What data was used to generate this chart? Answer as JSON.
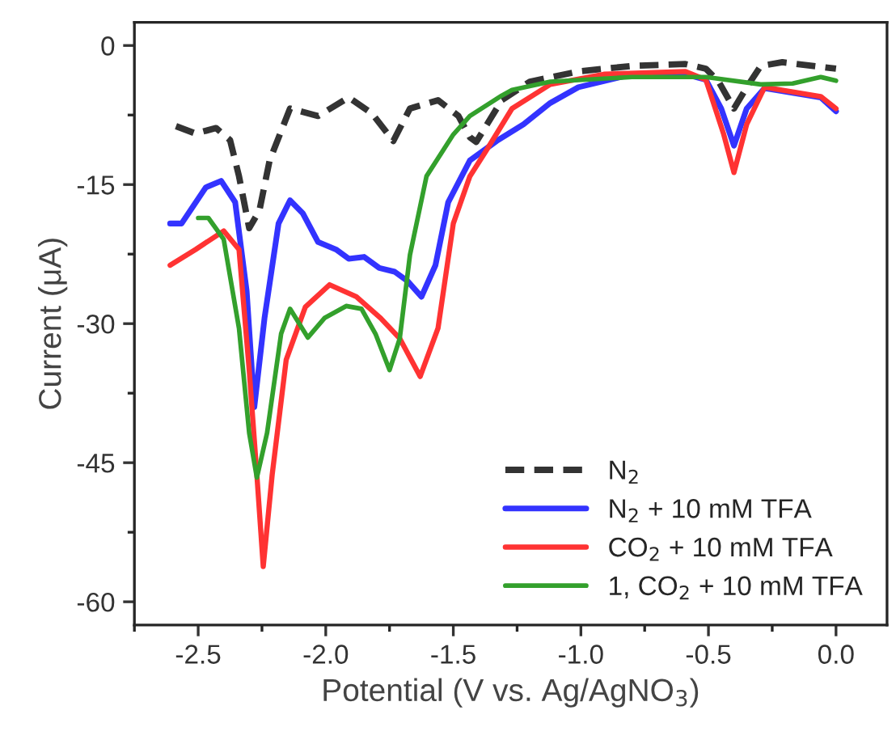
{
  "chart_data": {
    "type": "line",
    "xlabel": "Potential (V vs. Ag/AgNO$_{3}$)",
    "ylabel": "Current (μA)",
    "xlim": [
      -2.75,
      0.2
    ],
    "ylim": [
      -62.5,
      2.5
    ],
    "xticks": [
      {
        "value": -2.75,
        "label": null
      },
      {
        "value": -2.5,
        "label": "-2.5"
      },
      {
        "value": -2.25,
        "label": null
      },
      {
        "value": -2.0,
        "label": "-2.0"
      },
      {
        "value": -1.75,
        "label": null
      },
      {
        "value": -1.5,
        "label": "-1.5"
      },
      {
        "value": -1.25,
        "label": null
      },
      {
        "value": -1.0,
        "label": "-1.0"
      },
      {
        "value": -0.75,
        "label": null
      },
      {
        "value": -0.5,
        "label": "-0.5"
      },
      {
        "value": -0.25,
        "label": null
      },
      {
        "value": 0.0,
        "label": "0.0"
      }
    ],
    "yticks": [
      {
        "value": -60,
        "label": "-60"
      },
      {
        "value": -52.5,
        "label": null
      },
      {
        "value": -45,
        "label": "-45"
      },
      {
        "value": -37.5,
        "label": null
      },
      {
        "value": -30,
        "label": "-30"
      },
      {
        "value": -22.5,
        "label": null
      },
      {
        "value": -15,
        "label": "-15"
      },
      {
        "value": -7.5,
        "label": null
      },
      {
        "value": 0,
        "label": "0"
      }
    ],
    "grid": false,
    "legend": "bottom right",
    "series": [
      {
        "name": "N$_{2}$",
        "color": "#333333",
        "line_style": "dashed",
        "x": [
          -2.587,
          -2.51,
          -2.43,
          -2.375,
          -2.34,
          -2.3,
          -2.26,
          -2.22,
          -2.14,
          -2.03,
          -1.91,
          -1.82,
          -1.735,
          -1.67,
          -1.56,
          -1.48,
          -1.435,
          -1.41,
          -1.31,
          -1.2,
          -1.01,
          -0.8,
          -0.59,
          -0.51,
          -0.46,
          -0.4,
          -0.35,
          -0.295,
          -0.21,
          0.0
        ],
        "values": [
          -8.7,
          -9.5,
          -8.9,
          -10.2,
          -14.1,
          -19.7,
          -17.8,
          -12.4,
          -6.8,
          -7.6,
          -5.6,
          -7.3,
          -10.3,
          -6.8,
          -5.9,
          -7.6,
          -9.9,
          -10.4,
          -5.9,
          -3.9,
          -2.8,
          -2.2,
          -2.0,
          -2.5,
          -3.9,
          -6.8,
          -4.5,
          -2.2,
          -1.8,
          -2.5
        ]
      },
      {
        "name": "N$_{2}$ + 10 mM TFA",
        "color": "#3333ff",
        "line_style": "solid",
        "x": [
          -2.61,
          -2.565,
          -2.47,
          -2.41,
          -2.355,
          -2.31,
          -2.28,
          -2.24,
          -2.185,
          -2.14,
          -2.09,
          -2.03,
          -1.96,
          -1.91,
          -1.85,
          -1.79,
          -1.73,
          -1.68,
          -1.625,
          -1.57,
          -1.52,
          -1.435,
          -1.33,
          -1.225,
          -1.12,
          -1.01,
          -0.8,
          -0.59,
          -0.51,
          -0.45,
          -0.4,
          -0.35,
          -0.28,
          -0.17,
          -0.06,
          0.0
        ],
        "values": [
          -19.2,
          -19.2,
          -15.3,
          -14.6,
          -16.9,
          -26.5,
          -39.0,
          -29.4,
          -19.2,
          -16.7,
          -18.1,
          -21.2,
          -22.0,
          -23.0,
          -22.8,
          -24.0,
          -24.4,
          -25.4,
          -27.1,
          -23.7,
          -16.9,
          -12.4,
          -10.3,
          -8.5,
          -6.2,
          -4.5,
          -3.1,
          -3.1,
          -3.7,
          -6.8,
          -10.8,
          -6.8,
          -4.6,
          -5.1,
          -5.6,
          -7.1
        ]
      },
      {
        "name": "CO$_{2}$ + 10 mM TFA",
        "color": "#ff3333",
        "line_style": "solid",
        "x": [
          -2.61,
          -2.51,
          -2.4,
          -2.34,
          -2.3,
          -2.27,
          -2.245,
          -2.21,
          -2.155,
          -2.08,
          -1.985,
          -1.88,
          -1.785,
          -1.71,
          -1.63,
          -1.56,
          -1.5,
          -1.435,
          -1.37,
          -1.27,
          -1.12,
          -0.91,
          -0.59,
          -0.51,
          -0.44,
          -0.4,
          -0.35,
          -0.28,
          -0.17,
          -0.06,
          0.0
        ],
        "values": [
          -23.7,
          -22.0,
          -20.0,
          -22.0,
          -35.0,
          -46.3,
          -56.2,
          -46.3,
          -33.9,
          -28.2,
          -25.8,
          -27.1,
          -29.4,
          -31.6,
          -35.7,
          -30.5,
          -19.2,
          -14.1,
          -11.3,
          -6.8,
          -4.2,
          -3.1,
          -2.8,
          -3.7,
          -9.6,
          -13.7,
          -8.5,
          -4.5,
          -5.0,
          -5.5,
          -6.8
        ]
      },
      {
        "name": "1, CO$_{2}$ + 10 mM TFA",
        "color": "#33a02c",
        "line_style": "solid",
        "x": [
          -2.5,
          -2.46,
          -2.4,
          -2.34,
          -2.3,
          -2.27,
          -2.23,
          -2.175,
          -2.14,
          -2.07,
          -2.005,
          -1.92,
          -1.86,
          -1.805,
          -1.75,
          -1.71,
          -1.67,
          -1.605,
          -1.5,
          -1.435,
          -1.31,
          -1.27,
          -1.12,
          -0.8,
          -0.51,
          -0.295,
          -0.17,
          -0.06,
          0.0
        ],
        "values": [
          -18.6,
          -18.6,
          -20.9,
          -30.5,
          -41.8,
          -46.6,
          -41.8,
          -31.1,
          -28.4,
          -31.5,
          -29.4,
          -28.1,
          -28.4,
          -31.1,
          -35.0,
          -31.6,
          -22.6,
          -14.1,
          -9.6,
          -7.6,
          -5.4,
          -4.8,
          -3.9,
          -3.4,
          -3.4,
          -4.2,
          -4.1,
          -3.4,
          -3.8
        ]
      }
    ]
  }
}
